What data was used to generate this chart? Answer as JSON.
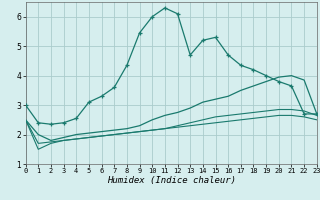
{
  "title": "",
  "xlabel": "Humidex (Indice chaleur)",
  "bg_color": "#d6eeee",
  "grid_color": "#aacccc",
  "line_color": "#1a7a6e",
  "xlim": [
    0,
    23
  ],
  "ylim": [
    1,
    6.5
  ],
  "x_ticks": [
    0,
    1,
    2,
    3,
    4,
    5,
    6,
    7,
    8,
    9,
    10,
    11,
    12,
    13,
    14,
    15,
    16,
    17,
    18,
    19,
    20,
    21,
    22,
    23
  ],
  "y_ticks": [
    1,
    2,
    3,
    4,
    5,
    6
  ],
  "series1_x": [
    0,
    1,
    2,
    3,
    4,
    5,
    6,
    7,
    8,
    9,
    10,
    11,
    12,
    13,
    14,
    15,
    16,
    17,
    18,
    19,
    20,
    21,
    22,
    23
  ],
  "series1_y": [
    3.0,
    2.4,
    2.35,
    2.4,
    2.55,
    3.1,
    3.3,
    3.6,
    4.35,
    5.45,
    6.0,
    6.3,
    6.1,
    4.7,
    5.2,
    5.3,
    4.7,
    4.35,
    4.2,
    4.0,
    3.8,
    3.65,
    2.7,
    2.7
  ],
  "series2_x": [
    0,
    1,
    2,
    3,
    4,
    5,
    6,
    7,
    8,
    9,
    10,
    11,
    12,
    13,
    14,
    15,
    16,
    17,
    18,
    19,
    20,
    21,
    22,
    23
  ],
  "series2_y": [
    2.5,
    2.0,
    1.8,
    1.9,
    2.0,
    2.05,
    2.1,
    2.15,
    2.2,
    2.3,
    2.5,
    2.65,
    2.75,
    2.9,
    3.1,
    3.2,
    3.3,
    3.5,
    3.65,
    3.8,
    3.95,
    4.0,
    3.85,
    2.7
  ],
  "series3_x": [
    0,
    1,
    2,
    3,
    4,
    5,
    6,
    7,
    8,
    9,
    10,
    11,
    12,
    13,
    14,
    15,
    16,
    17,
    18,
    19,
    20,
    21,
    22,
    23
  ],
  "series3_y": [
    2.5,
    1.7,
    1.75,
    1.8,
    1.85,
    1.9,
    1.95,
    2.0,
    2.05,
    2.1,
    2.15,
    2.2,
    2.3,
    2.4,
    2.5,
    2.6,
    2.65,
    2.7,
    2.75,
    2.8,
    2.85,
    2.85,
    2.8,
    2.65
  ],
  "series4_x": [
    0,
    1,
    2,
    3,
    4,
    5,
    6,
    7,
    8,
    9,
    10,
    11,
    12,
    13,
    14,
    15,
    16,
    17,
    18,
    19,
    20,
    21,
    22,
    23
  ],
  "series4_y": [
    2.5,
    1.5,
    1.7,
    1.8,
    1.85,
    1.9,
    1.95,
    2.0,
    2.05,
    2.1,
    2.15,
    2.2,
    2.25,
    2.3,
    2.35,
    2.4,
    2.45,
    2.5,
    2.55,
    2.6,
    2.65,
    2.65,
    2.6,
    2.5
  ]
}
